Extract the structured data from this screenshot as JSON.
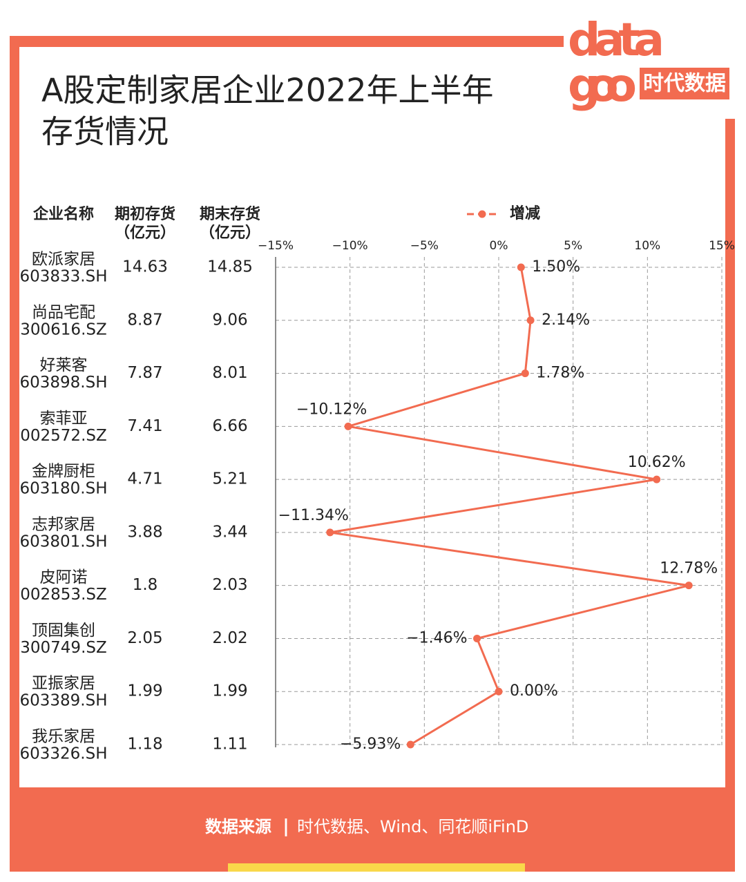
{
  "header": {
    "title_lines": [
      "A股定制家居企业2022年上半年",
      "存货情况"
    ],
    "logo": {
      "word_top": "data",
      "word_bottom": "goo",
      "brand": "时代数据"
    }
  },
  "table": {
    "columns": [
      [
        "企业名称"
      ],
      [
        "期初存货",
        "（亿元）"
      ],
      [
        "期末存货",
        "（亿元）"
      ]
    ],
    "rows": [
      [
        "欧派家居",
        "603833.SH",
        "14.63",
        "14.85"
      ],
      [
        "尚品宅配",
        "300616.SZ",
        "8.87",
        "9.06"
      ],
      [
        "好莱客",
        "603898.SH",
        "7.87",
        "8.01"
      ],
      [
        "索菲亚",
        "002572.SZ",
        "7.41",
        "6.66"
      ],
      [
        "金牌厨柜",
        "603180.SH",
        "4.71",
        "5.21"
      ],
      [
        "志邦家居",
        "603801.SH",
        "3.88",
        "3.44"
      ],
      [
        "皮阿诺",
        "002853.SZ",
        "1.8",
        "2.03"
      ],
      [
        "顶固集创",
        "300749.SZ",
        "2.05",
        "2.02"
      ],
      [
        "亚振家居",
        "603389.SH",
        "1.99",
        "1.99"
      ],
      [
        "我乐家居",
        "603326.SH",
        "1.18",
        "1.11"
      ]
    ]
  },
  "chart_data": {
    "type": "line",
    "orientation": "horizontal",
    "series": [
      {
        "name": "增减",
        "color": "#f26b50",
        "values": [
          1.5,
          2.14,
          1.78,
          -10.12,
          10.62,
          -11.34,
          12.78,
          -1.46,
          0.0,
          -5.93
        ],
        "value_labels": [
          "1.50%",
          "2.14%",
          "1.78%",
          "−10.12%",
          "10.62%",
          "−11.34%",
          "12.78%",
          "−1.46%",
          "0.00%",
          "−5.93%"
        ]
      }
    ],
    "xlim": [
      -15,
      15
    ],
    "xticks": [
      {
        "value": -15,
        "label": "−15%"
      },
      {
        "value": -10,
        "label": "−10%"
      },
      {
        "value": -5,
        "label": "−5%"
      },
      {
        "value": 0,
        "label": "0%"
      },
      {
        "value": 5,
        "label": "5%"
      },
      {
        "value": 10,
        "label": "10%"
      },
      {
        "value": 15,
        "label": "15%"
      }
    ],
    "grid": true,
    "legend": "top"
  },
  "footer": {
    "source_label": "数据来源",
    "separator": "|",
    "source_text": "时代数据、Wind、同花顺iFinD"
  }
}
